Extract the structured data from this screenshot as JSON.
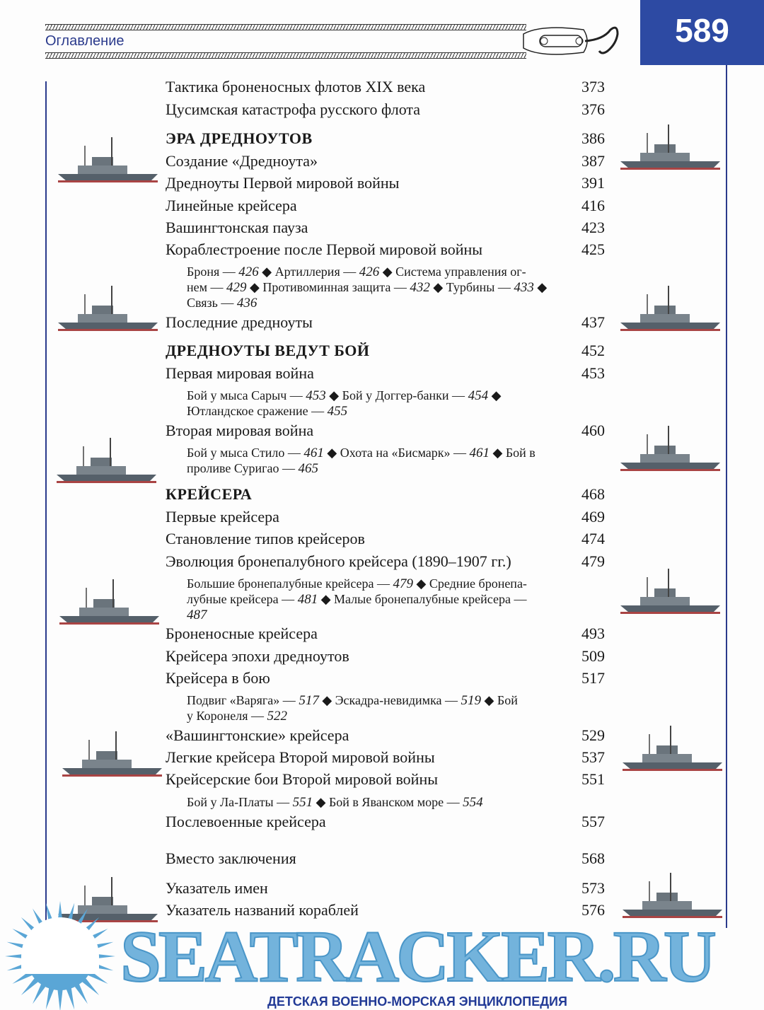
{
  "header": {
    "section_title": "Оглавление",
    "page_number": "589",
    "accent_color": "#2d4aa3"
  },
  "entries": [
    {
      "title": "Тактика броненосных флотов XIX века",
      "page": "373"
    },
    {
      "title": "Цусимская катастрофа русского флота",
      "page": "376"
    },
    {
      "title": "ЭРА  ДРЕДНОУТОВ",
      "page": "386",
      "heading": true
    },
    {
      "title": "Создание «Дредноута»",
      "page": "387"
    },
    {
      "title": "Дредноуты Первой мировой  войны",
      "page": "391"
    },
    {
      "title": "Линейные крейсера",
      "page": "416"
    },
    {
      "title": "Вашингтонская пауза",
      "page": "423"
    },
    {
      "title": "Кораблестроение после Первой мировой войны",
      "page": "425",
      "sub": [
        [
          {
            "t": "Броня — "
          },
          {
            "t": "426",
            "i": true
          },
          {
            "t": " ◆ Артиллерия — "
          },
          {
            "t": "426",
            "i": true
          },
          {
            "t": " ◆ Система управления ог-"
          }
        ],
        [
          {
            "t": "нем — "
          },
          {
            "t": "429",
            "i": true
          },
          {
            "t": " ◆ Противоминная защита — "
          },
          {
            "t": "432",
            "i": true
          },
          {
            "t": " ◆ Турбины — "
          },
          {
            "t": "433",
            "i": true
          },
          {
            "t": " ◆"
          }
        ],
        [
          {
            "t": "Связь — "
          },
          {
            "t": "436",
            "i": true
          }
        ]
      ]
    },
    {
      "title": "Последние дредноуты",
      "page": "437"
    },
    {
      "title": "ДРЕДНОУТЫ  ВЕДУТ  БОЙ",
      "page": "452",
      "heading": true
    },
    {
      "title": "Первая мировая война",
      "page": "453",
      "sub": [
        [
          {
            "t": "Бой  у  мыса  Сарыч — "
          },
          {
            "t": "453",
            "i": true
          },
          {
            "t": " ◆  Бой  у  Доггер-банки — "
          },
          {
            "t": "454",
            "i": true
          },
          {
            "t": " ◆"
          }
        ],
        [
          {
            "t": "Ютландское  сражение — "
          },
          {
            "t": "455",
            "i": true
          }
        ]
      ]
    },
    {
      "title": "Вторая мировая война",
      "page": "460",
      "sub": [
        [
          {
            "t": "Бой у мыса Стило — "
          },
          {
            "t": "461",
            "i": true
          },
          {
            "t": " ◆ Охота на «Бисмарк» — "
          },
          {
            "t": "461",
            "i": true
          },
          {
            "t": " ◆ Бой в"
          }
        ],
        [
          {
            "t": "проливе Суригао — "
          },
          {
            "t": "465",
            "i": true
          }
        ]
      ]
    },
    {
      "title": "КРЕЙСЕРА",
      "page": "468",
      "heading": true
    },
    {
      "title": "Первые крейсера",
      "page": "469"
    },
    {
      "title": "Становление типов крейсеров",
      "page": "474"
    },
    {
      "title": "Эволюция бронепалубного крейсера (1890–1907 гг.)",
      "page": "479",
      "sub": [
        [
          {
            "t": "Большие бронепалубные крейсера — "
          },
          {
            "t": "479",
            "i": true
          },
          {
            "t": " ◆ Средние бронепа-"
          }
        ],
        [
          {
            "t": "лубные крейсера — "
          },
          {
            "t": "481",
            "i": true
          },
          {
            "t": " ◆ Малые бронепалубные крейсера —"
          }
        ],
        [
          {
            "t": "487",
            "i": true
          }
        ]
      ]
    },
    {
      "title": "Броненосные крейсера",
      "page": "493"
    },
    {
      "title": "Крейсера эпохи дредноутов",
      "page": "509"
    },
    {
      "title": "Крейсера в бою",
      "page": "517",
      "sub": [
        [
          {
            "t": "Подвиг  «Варяга» — "
          },
          {
            "t": "517",
            "i": true
          },
          {
            "t": " ◆  Эскадра-невидимка — "
          },
          {
            "t": "519",
            "i": true
          },
          {
            "t": " ◆  Бой"
          }
        ],
        [
          {
            "t": "у Коронеля — "
          },
          {
            "t": "522",
            "i": true
          }
        ]
      ]
    },
    {
      "title": "«Вашингтонские» крейсера",
      "page": "529"
    },
    {
      "title": "Легкие крейсера Второй мировой войны",
      "page": "537"
    },
    {
      "title": "Крейсерские бои Второй мировой войны",
      "page": "551",
      "sub": [
        [
          {
            "t": "Бой у Ла-Платы — "
          },
          {
            "t": "551",
            "i": true
          },
          {
            "t": " ◆ Бой в Яванском море — "
          },
          {
            "t": "554",
            "i": true
          }
        ]
      ]
    },
    {
      "title": "Послевоенные крейсера",
      "page": "557"
    },
    {
      "title": "Вместо заключения",
      "page": "568"
    },
    {
      "title": "Указатель имен",
      "page": "573"
    },
    {
      "title": "Указатель названий кораблей",
      "page": "576"
    }
  ],
  "watermark": {
    "text": "SEATRACKER.RU",
    "color": "#5aa6d6"
  },
  "footer": {
    "series_title": "ДЕТСКАЯ  ВОЕННО-МОРСКАЯ  ЭНЦИКЛОПЕДИЯ"
  }
}
